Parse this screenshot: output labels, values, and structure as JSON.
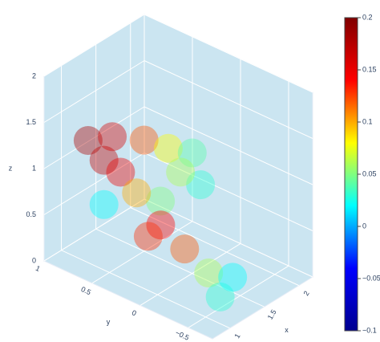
{
  "chart_data": {
    "type": "volume",
    "x_label": "x",
    "y_label": "y",
    "z_label": "z",
    "xlim": [
      0.75,
      2.2
    ],
    "ylim": [
      -0.75,
      1
    ],
    "zlim": [
      0,
      2
    ],
    "xticks": [
      1,
      1.5,
      2
    ],
    "yticks": [
      {
        "value": -0.5,
        "label": "−0.5"
      },
      0,
      0.5,
      1
    ],
    "zticks": [
      0,
      0.5,
      1,
      1.5,
      2
    ],
    "points": {
      "x": [
        0.83,
        1.06,
        1.3,
        1.64,
        1.99,
        1.78,
        1.9,
        1.32,
        1.53,
        1.88,
        1.67,
        1.46,
        1.21,
        1.39,
        1.18,
        1.61,
        1.06,
        1.7
      ],
      "y": [
        0.6,
        0.6,
        0.6,
        0.6,
        0.6,
        0.2,
        0.2,
        0.2,
        0.6,
        0.6,
        0.2,
        -0.2,
        -0.5,
        -0.5,
        0.6,
        0.2,
        0.6,
        0.6
      ],
      "z": [
        1.46,
        1.14,
        0.9,
        1.09,
        0.84,
        1.08,
        0.68,
        0.77,
        0.57,
        0.06,
        0.09,
        0.12,
        0.12,
        0.25,
        1.34,
        0.95,
        0.66,
        0.02
      ],
      "values": [
        0.18,
        0.17,
        0.15,
        0.12,
        0.08,
        0.04,
        0.03,
        0.05,
        0.1,
        0.14,
        0.12,
        0.06,
        0.03,
        0.02,
        0.16,
        0.06,
        0.02,
        0.13
      ]
    },
    "clim": [
      -0.1,
      0.2
    ],
    "colorbar_ticks": [
      {
        "value": -0.1,
        "label": "−0.1"
      },
      {
        "value": -0.05,
        "label": "−0.05"
      },
      0,
      0.05,
      0.1,
      0.15,
      0.2
    ],
    "colorscale": [
      "#00008f",
      "#0000ff",
      "#00ffff",
      "#ffff00",
      "#ff0000",
      "#800000"
    ],
    "opacity": 0.4
  }
}
